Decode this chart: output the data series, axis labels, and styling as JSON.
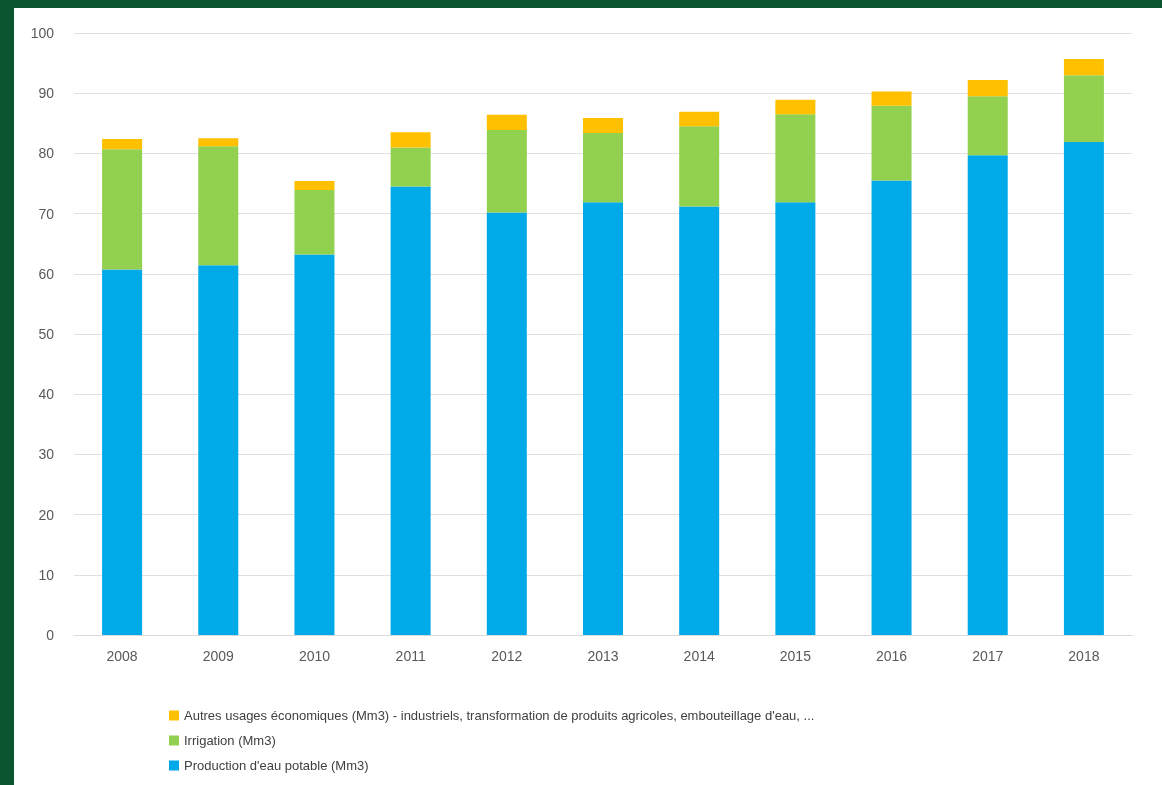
{
  "chart_data": {
    "type": "bar",
    "stacked": true,
    "categories": [
      "2008",
      "2009",
      "2010",
      "2011",
      "2012",
      "2013",
      "2014",
      "2015",
      "2016",
      "2017",
      "2018"
    ],
    "series": [
      {
        "name": "Production d'eau potable (Mm3)",
        "color": "#00a9e8",
        "values": [
          60.7,
          61.4,
          63.2,
          74.5,
          70.2,
          71.9,
          71.2,
          71.9,
          75.5,
          79.7,
          81.9
        ]
      },
      {
        "name": "Irrigation (Mm3)",
        "color": "#92d050",
        "values": [
          20.0,
          19.8,
          10.7,
          6.5,
          13.7,
          11.5,
          13.3,
          14.6,
          12.4,
          9.8,
          11.1
        ]
      },
      {
        "name": "Autres usages économiques (Mm3) - industriels, transformation de produits agricoles, embouteillage d'eau, ...",
        "color": "#ffc000",
        "values": [
          1.7,
          1.3,
          1.5,
          2.5,
          2.5,
          2.5,
          2.4,
          2.4,
          2.4,
          2.7,
          2.7
        ]
      }
    ],
    "ylim": [
      0,
      100
    ],
    "yticks": [
      0,
      10,
      20,
      30,
      40,
      50,
      60,
      70,
      80,
      90,
      100
    ],
    "grid": "y",
    "legend": "bottom"
  }
}
